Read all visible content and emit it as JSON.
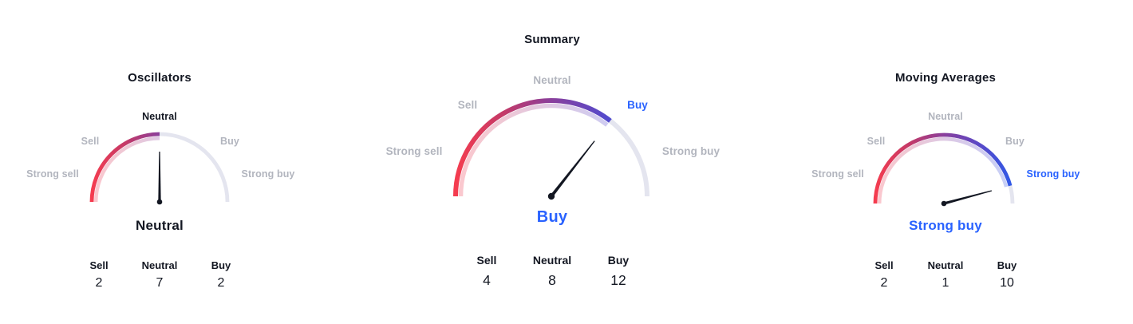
{
  "colors": {
    "background": "#ffffff",
    "accent_blue": "#2962ff",
    "inactive_label": "#b2b5be",
    "dark_text": "#131722",
    "track": "#e4e5ef",
    "needle": "#131722",
    "gradient_stops": [
      "#f53c4f",
      "#c43a68",
      "#8a3f9c",
      "#5b48c6",
      "#2e59e8"
    ]
  },
  "chart_data": [
    {
      "type": "gauge",
      "title": "Oscillators",
      "scale_labels": {
        "strong_sell": "Strong sell",
        "sell": "Sell",
        "neutral": "Neutral",
        "buy": "Buy",
        "strong_buy": "Strong buy"
      },
      "scale_label_colors": {
        "strong_sell": "#b2b5be",
        "sell": "#b2b5be",
        "neutral": "#131722",
        "buy": "#b2b5be",
        "strong_buy": "#b2b5be"
      },
      "reading": {
        "text": "Neutral",
        "color": "#131722"
      },
      "needle_angle_deg": 0,
      "counts": {
        "sell_label": "Sell",
        "sell": "2",
        "neutral_label": "Neutral",
        "neutral": "7",
        "buy_label": "Buy",
        "buy": "2"
      }
    },
    {
      "type": "gauge",
      "title": "Summary",
      "scale_labels": {
        "strong_sell": "Strong sell",
        "sell": "Sell",
        "neutral": "Neutral",
        "buy": "Buy",
        "strong_buy": "Strong buy"
      },
      "scale_label_colors": {
        "strong_sell": "#b2b5be",
        "sell": "#b2b5be",
        "neutral": "#b2b5be",
        "buy": "#2962ff",
        "strong_buy": "#b2b5be"
      },
      "reading": {
        "text": "Buy",
        "color": "#2962ff"
      },
      "needle_angle_deg": 38,
      "counts": {
        "sell_label": "Sell",
        "sell": "4",
        "neutral_label": "Neutral",
        "neutral": "8",
        "buy_label": "Buy",
        "buy": "12"
      }
    },
    {
      "type": "gauge",
      "title": "Moving Averages",
      "scale_labels": {
        "strong_sell": "Strong sell",
        "sell": "Sell",
        "neutral": "Neutral",
        "buy": "Buy",
        "strong_buy": "Strong buy"
      },
      "scale_label_colors": {
        "strong_sell": "#b2b5be",
        "sell": "#b2b5be",
        "neutral": "#b2b5be",
        "buy": "#b2b5be",
        "strong_buy": "#2962ff"
      },
      "reading": {
        "text": "Strong buy",
        "color": "#2962ff"
      },
      "needle_angle_deg": 75,
      "counts": {
        "sell_label": "Sell",
        "sell": "2",
        "neutral_label": "Neutral",
        "neutral": "1",
        "buy_label": "Buy",
        "buy": "10"
      }
    }
  ]
}
